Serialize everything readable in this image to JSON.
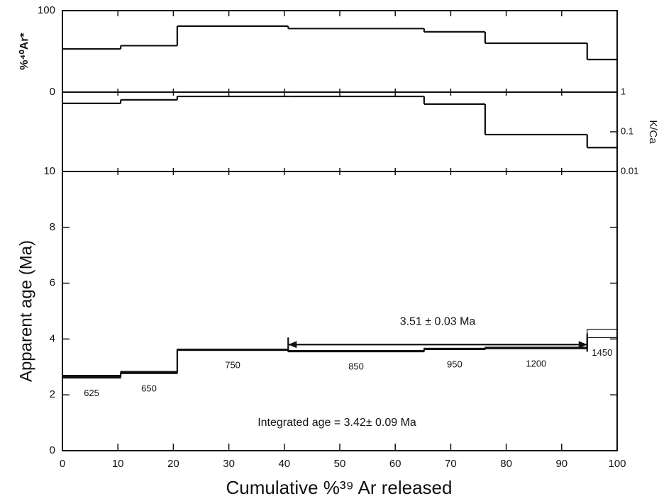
{
  "chart_data": {
    "type": "step",
    "x_label": "Cumulative %³⁹ Ar released",
    "xlim": [
      0,
      100
    ],
    "xticks": [
      0,
      10,
      20,
      30,
      40,
      50,
      60,
      70,
      80,
      90,
      100
    ],
    "step_edges": [
      0,
      10.5,
      20.7,
      40.7,
      65.2,
      76.2,
      94.6,
      100
    ],
    "temperatures": [
      "625",
      "650",
      "750",
      "850",
      "950",
      "1200",
      "1450"
    ],
    "panels": [
      {
        "y_label": "%⁴⁰Ar*",
        "ylim": [
          0,
          100
        ],
        "yticks": [
          0,
          100
        ],
        "values": [
          53,
          57,
          81,
          78,
          74,
          60,
          40
        ]
      },
      {
        "y_label": "K/Ca",
        "log": true,
        "ylim": [
          0.01,
          1
        ],
        "yticks": [
          0.01,
          0.1,
          1
        ],
        "values": [
          0.52,
          0.64,
          0.78,
          0.78,
          0.5,
          0.085,
          0.04
        ]
      },
      {
        "y_label": "Apparent age (Ma)",
        "ylim": [
          0,
          10
        ],
        "yticks": [
          0,
          2,
          4,
          6,
          8,
          10
        ],
        "values": [
          2.65,
          2.8,
          3.62,
          3.57,
          3.65,
          3.68,
          4.2
        ],
        "errors": [
          0.05,
          0.04,
          0.02,
          0.02,
          0.02,
          0.03,
          0.15
        ]
      }
    ],
    "plateau": {
      "label": "3.51 ± 0.03 Ma",
      "x": [
        40.7,
        94.6
      ],
      "y": 3.8
    },
    "integrated_age": "Integrated age = 3.42± 0.09 Ma"
  }
}
